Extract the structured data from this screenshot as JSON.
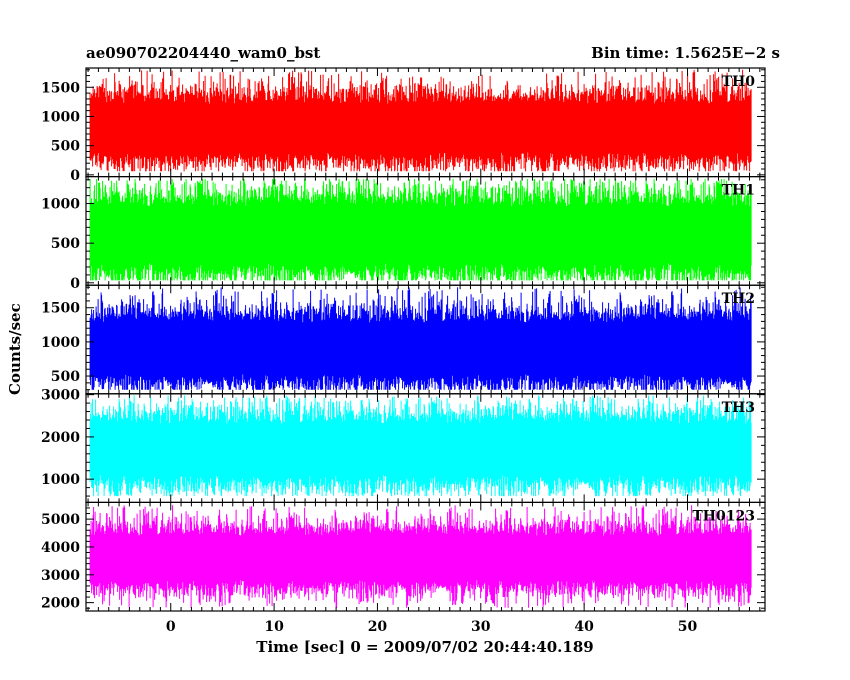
{
  "chart_data": {
    "type": "line",
    "title": "ae090702204440_wam0_bst",
    "subtitle": "Bin time: 1.5625E−2 s",
    "xlabel": "Time [sec] 0 = 2009/07/02 20:44:40.189",
    "ylabel": "Counts/sec",
    "xlim": [
      -8.2,
      57.5
    ],
    "x_ticks": [
      0,
      10,
      20,
      30,
      40,
      50
    ],
    "x_range_data": [
      -7.8,
      56.2
    ],
    "bin_time": 0.015625,
    "grid": false,
    "series": [
      {
        "name": "TH0",
        "color": "#ff0000",
        "ylim": [
          -30,
          1830
        ],
        "yticks": [
          0,
          500,
          1000,
          1500
        ],
        "mean": 800,
        "typical_min": 300,
        "typical_max": 1400,
        "min": 60,
        "max": 1800
      },
      {
        "name": "TH1",
        "color": "#00ff00",
        "ylim": [
          -30,
          1340
        ],
        "yticks": [
          0,
          500,
          1000
        ],
        "mean": 600,
        "typical_min": 150,
        "typical_max": 1100,
        "min": 30,
        "max": 1310
      },
      {
        "name": "TH2",
        "color": "#0000ff",
        "ylim": [
          240,
          1830
        ],
        "yticks": [
          500,
          1000,
          1500
        ],
        "mean": 900,
        "typical_min": 450,
        "typical_max": 1450,
        "min": 300,
        "max": 1800
      },
      {
        "name": "TH3",
        "color": "#00ffff",
        "ylim": [
          450,
          3020
        ],
        "yticks": [
          1000,
          2000,
          3000
        ],
        "mean": 1700,
        "typical_min": 900,
        "typical_max": 2500,
        "min": 600,
        "max": 2980
      },
      {
        "name": "TH0123",
        "color": "#ff00ff",
        "ylim": [
          1700,
          5600
        ],
        "yticks": [
          2000,
          3000,
          4000,
          5000
        ],
        "mean": 3600,
        "typical_min": 2600,
        "typical_max": 4700,
        "min": 1800,
        "max": 5500
      }
    ]
  }
}
